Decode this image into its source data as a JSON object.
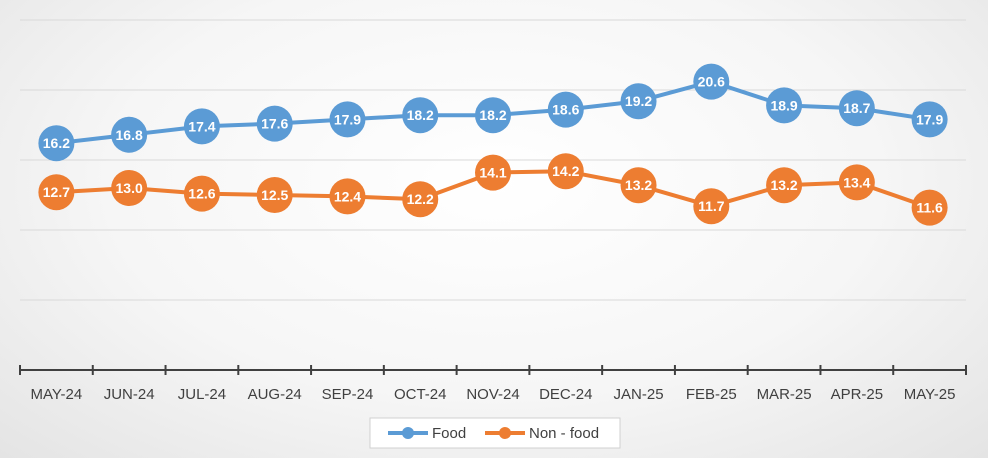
{
  "chart_data": {
    "type": "line",
    "title": "",
    "xlabel": "",
    "ylabel": "",
    "categories": [
      "MAY-24",
      "JUN-24",
      "JUL-24",
      "AUG-24",
      "SEP-24",
      "OCT-24",
      "NOV-24",
      "DEC-24",
      "JAN-25",
      "FEB-25",
      "MAR-25",
      "APR-25",
      "MAY-25"
    ],
    "ylim": [
      0,
      25
    ],
    "grid": true,
    "legend_position": "bottom",
    "data_labels": true,
    "series": [
      {
        "name": "Food",
        "color": "#5b9bd5",
        "values": [
          16.2,
          16.8,
          17.4,
          17.6,
          17.9,
          18.2,
          18.2,
          18.6,
          19.2,
          20.6,
          18.9,
          18.7,
          17.9
        ]
      },
      {
        "name": "Non - food",
        "color": "#ed7d31",
        "values": [
          12.7,
          13.0,
          12.6,
          12.5,
          12.4,
          12.2,
          14.1,
          14.2,
          13.2,
          11.7,
          13.2,
          13.4,
          11.6
        ]
      }
    ]
  }
}
